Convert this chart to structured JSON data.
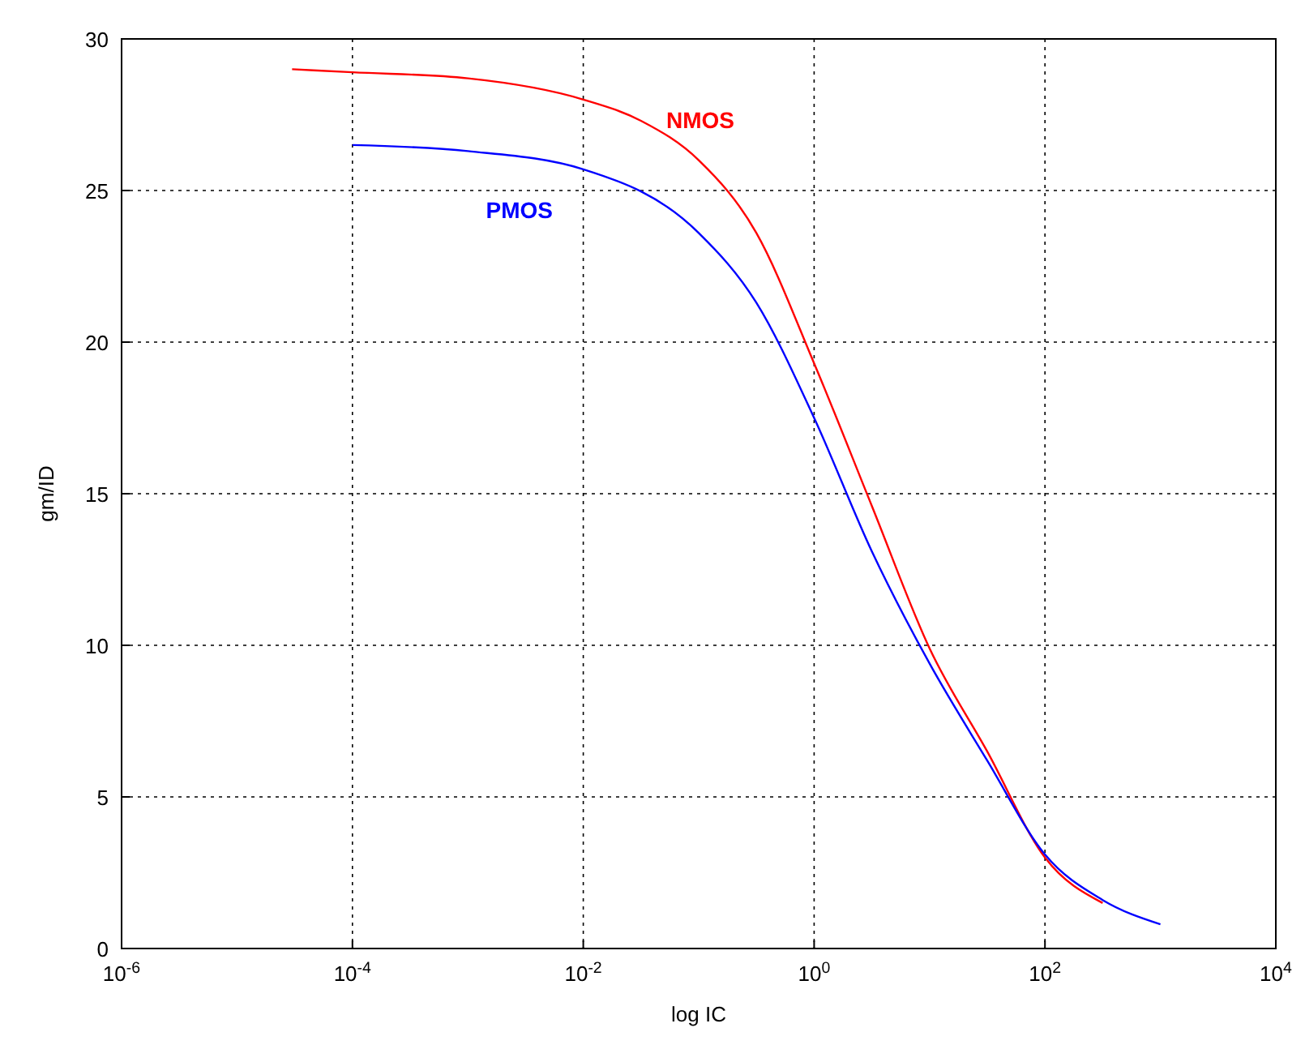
{
  "chart_data": {
    "type": "line",
    "xlabel": "log IC",
    "ylabel": "gm/ID",
    "log": "x",
    "grid": true,
    "marker": "none",
    "line_style": "solid",
    "xlim": [
      1e-06,
      10000
    ],
    "ylim": [
      0,
      30
    ],
    "xticks": [
      {
        "value": 1e-06,
        "label": "10$^{-6}$"
      },
      {
        "value": 0.0001,
        "label": "10$^{-4}$"
      },
      {
        "value": 0.01,
        "label": "10$^{-2}$"
      },
      {
        "value": 1,
        "label": "10$^{0}$"
      },
      {
        "value": 100,
        "label": "10$^{2}$"
      },
      {
        "value": 10000,
        "label": "10$^{4}$"
      }
    ],
    "yticks": [
      0,
      5,
      10,
      15,
      20,
      25,
      30
    ],
    "series": [
      {
        "name": "NMOS",
        "color": "#ff0000",
        "x": [
          3e-05,
          0.0001,
          0.001,
          0.01,
          0.0316,
          0.1,
          0.316,
          1,
          3.16,
          10,
          31.6,
          100,
          316
        ],
        "values": [
          29,
          28.9,
          28.7,
          28,
          27.3,
          26,
          23.6,
          19.3,
          14.6,
          9.9,
          6.5,
          3,
          1.5
        ]
      },
      {
        "name": "PMOS",
        "color": "#0000ff",
        "x": [
          0.0001,
          0.001,
          0.01,
          0.1,
          0.316,
          1,
          3.16,
          10,
          31.6,
          100,
          316,
          1000
        ],
        "values": [
          26.5,
          26.3,
          25.7,
          23.6,
          21.3,
          17.5,
          13.1,
          9.4,
          6.2,
          3.1,
          1.6,
          0.8
        ]
      }
    ]
  }
}
